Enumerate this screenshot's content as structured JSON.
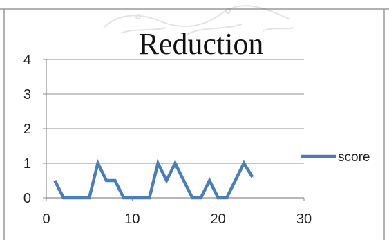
{
  "chart_data": {
    "type": "line",
    "title": "Reduction",
    "xlabel": "",
    "ylabel": "",
    "xlim": [
      0,
      30
    ],
    "ylim": [
      0,
      4
    ],
    "xticks": [
      0,
      10,
      20,
      30
    ],
    "yticks": [
      0,
      1,
      2,
      3,
      4
    ],
    "grid": "horizontal",
    "legend_position": "right",
    "series": [
      {
        "name": "score",
        "color": "#4a7ebb",
        "x": [
          1,
          2,
          3,
          4,
          5,
          6,
          7,
          8,
          9,
          10,
          11,
          12,
          13,
          14,
          15,
          16,
          17,
          18,
          19,
          20,
          21,
          22,
          23,
          24
        ],
        "y": [
          0.5,
          0,
          0,
          0,
          0,
          1,
          0.5,
          0.5,
          0,
          0,
          0,
          0,
          1,
          0.5,
          1,
          0.5,
          0,
          0,
          0.5,
          0,
          0,
          0.5,
          1,
          0.6
        ]
      }
    ]
  }
}
